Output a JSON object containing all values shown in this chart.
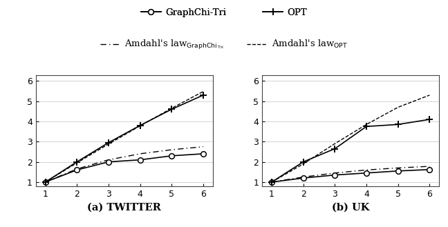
{
  "x": [
    1,
    2,
    3,
    4,
    5,
    6
  ],
  "twitter_graphchi": [
    1.0,
    1.6,
    2.0,
    2.1,
    2.3,
    2.4
  ],
  "twitter_opt": [
    1.0,
    2.0,
    2.95,
    3.8,
    4.6,
    5.3
  ],
  "twitter_amdahl_graphchi": [
    1.0,
    1.65,
    2.1,
    2.4,
    2.6,
    2.75
  ],
  "twitter_amdahl_opt": [
    1.0,
    1.95,
    2.88,
    3.78,
    4.65,
    5.48
  ],
  "uk_graphchi": [
    1.0,
    1.2,
    1.35,
    1.45,
    1.55,
    1.62
  ],
  "uk_opt": [
    1.0,
    2.0,
    2.65,
    3.75,
    3.85,
    4.1
  ],
  "uk_amdahl_graphchi": [
    1.0,
    1.25,
    1.45,
    1.6,
    1.7,
    1.78
  ],
  "uk_amdahl_opt": [
    1.0,
    1.9,
    2.9,
    3.85,
    4.7,
    5.3
  ],
  "xlabel_left": "(a) TWITTER",
  "xlabel_right": "(b) UK",
  "ylim": [
    0.8,
    6.3
  ],
  "xlim": [
    0.7,
    6.3
  ],
  "yticks": [
    1,
    2,
    3,
    4,
    5,
    6
  ],
  "xticks": [
    1,
    2,
    3,
    4,
    5,
    6
  ],
  "legend_graphchi_tri": "GraphChi-Tri",
  "legend_opt": "OPT",
  "line_color": "#000000",
  "grid_color": "#cccccc"
}
